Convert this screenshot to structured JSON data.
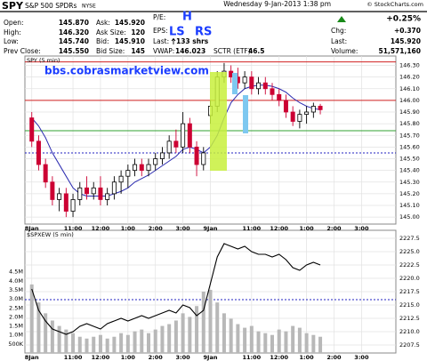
{
  "header": {
    "symbol": "SPY",
    "name": "S&P 500 SPDRs",
    "exchange": "NYSE",
    "datetime": "Wednesday  9-Jan-2013  1:38 pm",
    "source": "© StockCharts.com",
    "open": [
      "Open:",
      "145.870"
    ],
    "high": [
      "High:",
      "146.320"
    ],
    "low": [
      "Low:",
      "145.740"
    ],
    "prev_close": [
      "Prev Close:",
      "145.550"
    ],
    "ask": [
      "Ask:",
      "145.920"
    ],
    "ask_size": [
      "Ask Size:",
      "120"
    ],
    "bid": [
      "Bid:",
      "145.910"
    ],
    "bid_size": [
      "Bid Size:",
      "145"
    ],
    "pe": "P/E:",
    "eps": "EPS:",
    "last_trade": [
      "Last:",
      "133 shrs"
    ],
    "vwap": [
      "VWAP:",
      "146.023"
    ],
    "sctr": [
      "SCTR (ETF):",
      "46.5"
    ],
    "change_pct": "+0.25%",
    "chg": [
      "Chg:",
      "+0.370"
    ],
    "last": [
      "Last:",
      "145.920"
    ],
    "volume": [
      "Volume:",
      "51,571,160"
    ]
  },
  "annotations": {
    "site": "bbs.cobrasmarketview.com",
    "head": "H",
    "left_shoulder": "LS",
    "right_shoulder": "RS"
  },
  "chart_data": [
    {
      "type": "candlestick",
      "title": "SPY (5 min)",
      "x": [
        0,
        3,
        6,
        9,
        12,
        15,
        18,
        21,
        24,
        27,
        30,
        33,
        36,
        39,
        42,
        45,
        48,
        51,
        54,
        57,
        60,
        63,
        66,
        69,
        72,
        75,
        78,
        81,
        84,
        87,
        90,
        93,
        96,
        99,
        102,
        105,
        108,
        111,
        114,
        117,
        120,
        123,
        126
      ],
      "open": [
        145.85,
        145.65,
        145.45,
        145.3,
        145.15,
        145.2,
        145.05,
        145.15,
        145.25,
        145.2,
        145.25,
        145.15,
        145.2,
        145.3,
        145.35,
        145.4,
        145.45,
        145.4,
        145.45,
        145.5,
        145.55,
        145.65,
        145.6,
        145.8,
        145.6,
        145.45,
        145.87,
        145.95,
        146.2,
        146.25,
        146.2,
        146.15,
        146.2,
        146.1,
        146.15,
        146.1,
        146.05,
        146.0,
        145.9,
        145.82,
        145.88,
        145.9,
        145.95
      ],
      "high": [
        145.9,
        145.7,
        145.5,
        145.35,
        145.25,
        145.25,
        145.2,
        145.3,
        145.35,
        145.3,
        145.35,
        145.25,
        145.35,
        145.4,
        145.45,
        145.5,
        145.5,
        145.5,
        145.55,
        145.6,
        145.7,
        145.75,
        145.9,
        145.85,
        145.65,
        145.6,
        146.0,
        146.25,
        146.32,
        146.3,
        146.28,
        146.25,
        146.25,
        146.2,
        146.2,
        146.15,
        146.1,
        146.05,
        145.95,
        145.92,
        145.95,
        145.98,
        145.97
      ],
      "low": [
        145.6,
        145.4,
        145.25,
        145.1,
        145.05,
        145.0,
        145.0,
        145.1,
        145.15,
        145.15,
        145.1,
        145.1,
        145.15,
        145.2,
        145.25,
        145.35,
        145.35,
        145.35,
        145.4,
        145.45,
        145.5,
        145.55,
        145.55,
        145.55,
        145.35,
        145.4,
        145.8,
        145.9,
        146.15,
        146.15,
        146.1,
        146.1,
        146.05,
        146.05,
        146.05,
        146.0,
        145.95,
        145.85,
        145.78,
        145.76,
        145.8,
        145.85,
        145.88
      ],
      "close": [
        145.65,
        145.45,
        145.3,
        145.15,
        145.2,
        145.05,
        145.15,
        145.25,
        145.2,
        145.25,
        145.15,
        145.2,
        145.3,
        145.35,
        145.4,
        145.45,
        145.4,
        145.45,
        145.5,
        145.55,
        145.65,
        145.6,
        145.8,
        145.6,
        145.45,
        145.55,
        145.95,
        146.2,
        146.25,
        146.2,
        146.15,
        146.2,
        146.1,
        146.15,
        146.1,
        146.05,
        146.0,
        145.9,
        145.82,
        145.88,
        145.9,
        145.95,
        145.92
      ],
      "up_color": "#000000",
      "down_color": "#cc0033",
      "ma": {
        "color": "#2b2bb0",
        "values": [
          145.85,
          145.78,
          145.68,
          145.55,
          145.45,
          145.35,
          145.25,
          145.2,
          145.18,
          145.18,
          145.18,
          145.18,
          145.2,
          145.22,
          145.25,
          145.3,
          145.33,
          145.36,
          145.4,
          145.44,
          145.48,
          145.52,
          145.58,
          145.6,
          145.58,
          145.55,
          145.6,
          145.7,
          145.85,
          145.98,
          146.05,
          146.1,
          146.12,
          146.13,
          146.13,
          146.12,
          146.1,
          146.07,
          146.02,
          145.98,
          145.95,
          145.93,
          145.92
        ]
      },
      "hlines": [
        {
          "value": 146.33,
          "color": "#d02020",
          "dash": false
        },
        {
          "value": 146.0,
          "color": "#d02020",
          "dash": false
        },
        {
          "value": 145.74,
          "color": "#30a030",
          "dash": false
        },
        {
          "value": 145.55,
          "color": "#2020c0",
          "dash": true
        }
      ],
      "xlim": [
        -3,
        159
      ],
      "xticks": [
        {
          "value": 0,
          "label": "8Jan"
        },
        {
          "value": 18,
          "label": "11:00"
        },
        {
          "value": 30,
          "label": "12:00"
        },
        {
          "value": 42,
          "label": "1:00"
        },
        {
          "value": 54,
          "label": "2:00"
        },
        {
          "value": 66,
          "label": "3:00"
        },
        {
          "value": 78,
          "label": "9Jan"
        },
        {
          "value": 96,
          "label": "11:00"
        },
        {
          "value": 108,
          "label": "12:00"
        },
        {
          "value": 120,
          "label": "1:00"
        },
        {
          "value": 132,
          "label": "2:00"
        },
        {
          "value": 144,
          "label": "3:00"
        }
      ],
      "ylim": [
        144.94,
        146.38
      ],
      "yticks": [
        {
          "value": 145.0,
          "label": "145.00"
        },
        {
          "value": 145.1,
          "label": "145.10"
        },
        {
          "value": 145.2,
          "label": "145.20"
        },
        {
          "value": 145.3,
          "label": "145.30"
        },
        {
          "value": 145.4,
          "label": "145.40"
        },
        {
          "value": 145.5,
          "label": "145.50"
        },
        {
          "value": 145.6,
          "label": "145.60"
        },
        {
          "value": 145.7,
          "label": "145.70"
        },
        {
          "value": 145.8,
          "label": "145.80"
        },
        {
          "value": 145.9,
          "label": "145.90"
        },
        {
          "value": 146.0,
          "label": "146.00"
        },
        {
          "value": 146.1,
          "label": "146.10"
        },
        {
          "value": 146.2,
          "label": "146.20"
        },
        {
          "value": 146.3,
          "label": "146.30"
        }
      ],
      "grid": true
    },
    {
      "type": "line",
      "title": "$SPXEW (5 min)",
      "x": [
        0,
        3,
        6,
        9,
        12,
        15,
        18,
        21,
        24,
        27,
        30,
        33,
        36,
        39,
        42,
        45,
        48,
        51,
        54,
        57,
        60,
        63,
        66,
        69,
        72,
        75,
        78,
        81,
        84,
        87,
        90,
        93,
        96,
        99,
        102,
        105,
        108,
        111,
        114,
        117,
        120,
        123,
        126
      ],
      "series": [
        {
          "color": "#000000",
          "values": [
            2218,
            2214,
            2212,
            2210.5,
            2210,
            2209.5,
            2210,
            2211,
            2211.5,
            2211,
            2210.5,
            2211.5,
            2212,
            2212.5,
            2212,
            2212.5,
            2213,
            2212.5,
            2213,
            2213.5,
            2214,
            2213.5,
            2215,
            2214.5,
            2213,
            2214,
            2219,
            2224,
            2226.5,
            2226,
            2225.5,
            2226,
            2225,
            2224.5,
            2224.5,
            2224,
            2224.5,
            2223.5,
            2222,
            2221.5,
            2222.5,
            2223,
            2222.5
          ]
        }
      ],
      "volume": {
        "color": "#b8b8b8",
        "values": [
          3800000,
          2800000,
          2200000,
          1800000,
          1500000,
          1300000,
          1100000,
          900000,
          800000,
          900000,
          1000000,
          800000,
          900000,
          1100000,
          1000000,
          1200000,
          1300000,
          1100000,
          1300000,
          1500000,
          1600000,
          1800000,
          2200000,
          2000000,
          2600000,
          3400000,
          3500000,
          2800000,
          2200000,
          1900000,
          1600000,
          1400000,
          1500000,
          1200000,
          1100000,
          1000000,
          1300000,
          1200000,
          1500000,
          1400000,
          1100000,
          1000000,
          900000
        ]
      },
      "vlim": [
        0,
        6800000
      ],
      "vticks": [
        {
          "value": 500000,
          "label": "500K"
        },
        {
          "value": 1000000,
          "label": "1.0M"
        },
        {
          "value": 1500000,
          "label": "1.5M"
        },
        {
          "value": 2000000,
          "label": "2.0M"
        },
        {
          "value": 2500000,
          "label": "2.5M"
        },
        {
          "value": 3000000,
          "label": "3.0M"
        },
        {
          "value": 3500000,
          "label": "3.5M"
        },
        {
          "value": 4000000,
          "label": "4.0M"
        },
        {
          "value": 4500000,
          "label": "4.5M"
        }
      ],
      "hlines": [
        {
          "value": 2216,
          "color": "#2020c0",
          "dash": true
        }
      ],
      "xlim": [
        -3,
        159
      ],
      "xticks": [
        {
          "value": 0,
          "label": "8Jan"
        },
        {
          "value": 18,
          "label": "11:00"
        },
        {
          "value": 30,
          "label": "12:00"
        },
        {
          "value": 42,
          "label": "1:00"
        },
        {
          "value": 54,
          "label": "2:00"
        },
        {
          "value": 66,
          "label": "3:00"
        },
        {
          "value": 78,
          "label": "9Jan"
        },
        {
          "value": 96,
          "label": "11:00"
        },
        {
          "value": 108,
          "label": "12:00"
        },
        {
          "value": 120,
          "label": "1:00"
        },
        {
          "value": 132,
          "label": "2:00"
        },
        {
          "value": 144,
          "label": "3:00"
        }
      ],
      "ylim": [
        2206,
        2229
      ],
      "yticks": [
        {
          "value": 2207.5,
          "label": "2207.5"
        },
        {
          "value": 2210,
          "label": "2210.0"
        },
        {
          "value": 2212.5,
          "label": "2212.5"
        },
        {
          "value": 2215,
          "label": "2215.0"
        },
        {
          "value": 2217.5,
          "label": "2217.5"
        },
        {
          "value": 2220,
          "label": "2220.0"
        },
        {
          "value": 2222.5,
          "label": "2222.5"
        },
        {
          "value": 2225,
          "label": "2225.0"
        },
        {
          "value": 2227.5,
          "label": "2227.5"
        }
      ],
      "grid": true
    }
  ]
}
